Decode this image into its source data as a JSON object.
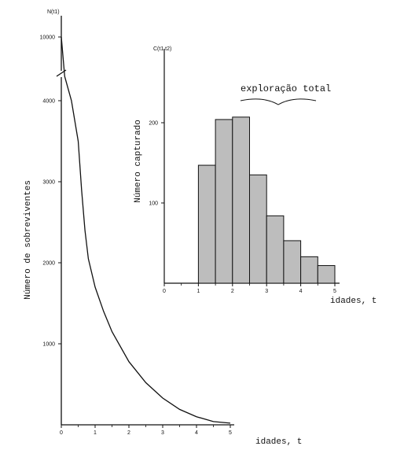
{
  "chart_data": [
    {
      "type": "line",
      "y_axis_title": "N(t1)",
      "ylabel": "Número de sobreviventes",
      "xlabel": "idades, t",
      "xlim": [
        0,
        5
      ],
      "ylim": [
        0,
        10000
      ],
      "axis_break": true,
      "x_ticks": [
        "0",
        "1",
        "2",
        "3",
        "4",
        "5"
      ],
      "y_ticks": [
        "1000",
        "2000",
        "3000",
        "4000",
        "10000"
      ],
      "x": [
        0,
        0.1,
        0.3,
        0.5,
        0.6,
        0.7,
        0.8,
        1.0,
        1.25,
        1.5,
        2.0,
        2.5,
        3.0,
        3.5,
        4.0,
        4.5,
        5.0
      ],
      "y": [
        10000,
        4300,
        4000,
        3500,
        2900,
        2400,
        2050,
        1700,
        1400,
        1150,
        780,
        520,
        330,
        190,
        100,
        40,
        20
      ]
    },
    {
      "type": "bar",
      "y_axis_title": "C(t1,t2)",
      "ylabel": "Número capturado",
      "xlabel": "idades, t",
      "annotation": "exploração total",
      "xlim": [
        0,
        5
      ],
      "ylim": [
        0,
        280
      ],
      "x_ticks": [
        "0",
        "1",
        "2",
        "3",
        "4",
        "5"
      ],
      "y_ticks": [
        "100",
        "200"
      ],
      "bins": [
        [
          1,
          1.5
        ],
        [
          1.5,
          2
        ],
        [
          2,
          2.5
        ],
        [
          2.5,
          3
        ],
        [
          3,
          3.5
        ],
        [
          3.5,
          4
        ],
        [
          4,
          4.5
        ],
        [
          4.5,
          5
        ]
      ],
      "values": [
        147,
        204,
        207,
        135,
        84,
        53,
        33,
        22
      ],
      "bar_color": "#bdbdbd"
    }
  ]
}
